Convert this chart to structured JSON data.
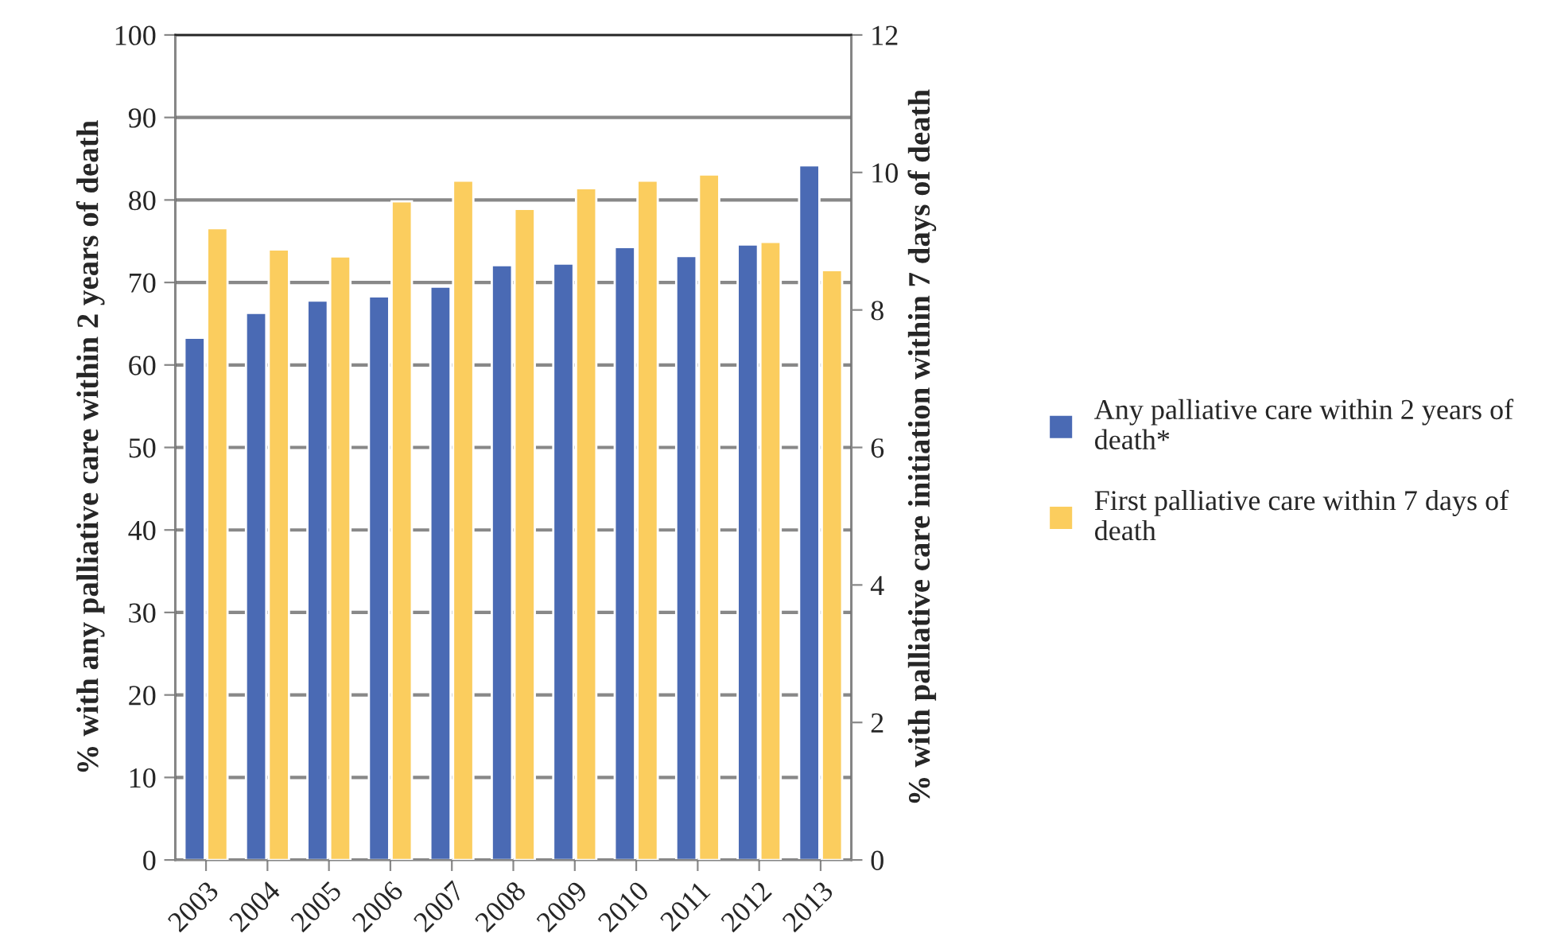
{
  "chart_data": {
    "type": "bar",
    "ylabel": "% with any palliative care within 2 years of death",
    "y2label": "% with palliative care initiation within 7 days of death",
    "categories": [
      "2003",
      "2004",
      "2005",
      "2006",
      "2007",
      "2008",
      "2009",
      "2010",
      "2011",
      "2012",
      "2013"
    ],
    "series": [
      {
        "name": "Any palliative care within 2 years of death*",
        "color": "#4a6ab4",
        "values": [
          63.3,
          66.3,
          67.8,
          68.3,
          69.5,
          72.1,
          72.3,
          74.3,
          73.2,
          74.6,
          84.2
        ]
      },
      {
        "name": "First palliative care within 7 days of death",
        "color": "#fbcd5e",
        "axis": "y2",
        "values": [
          9.19,
          8.88,
          8.78,
          9.58,
          9.88,
          9.47,
          9.77,
          9.88,
          9.97,
          8.99,
          8.58
        ]
      }
    ],
    "ylim": [
      0,
      100
    ],
    "yticks": [
      0,
      10,
      20,
      30,
      40,
      50,
      60,
      70,
      80,
      90,
      100
    ],
    "y2lim": [
      0,
      12
    ],
    "y2ticks": [
      0,
      2,
      4,
      6,
      8,
      10,
      12
    ],
    "grid": "y",
    "legend": "right"
  }
}
